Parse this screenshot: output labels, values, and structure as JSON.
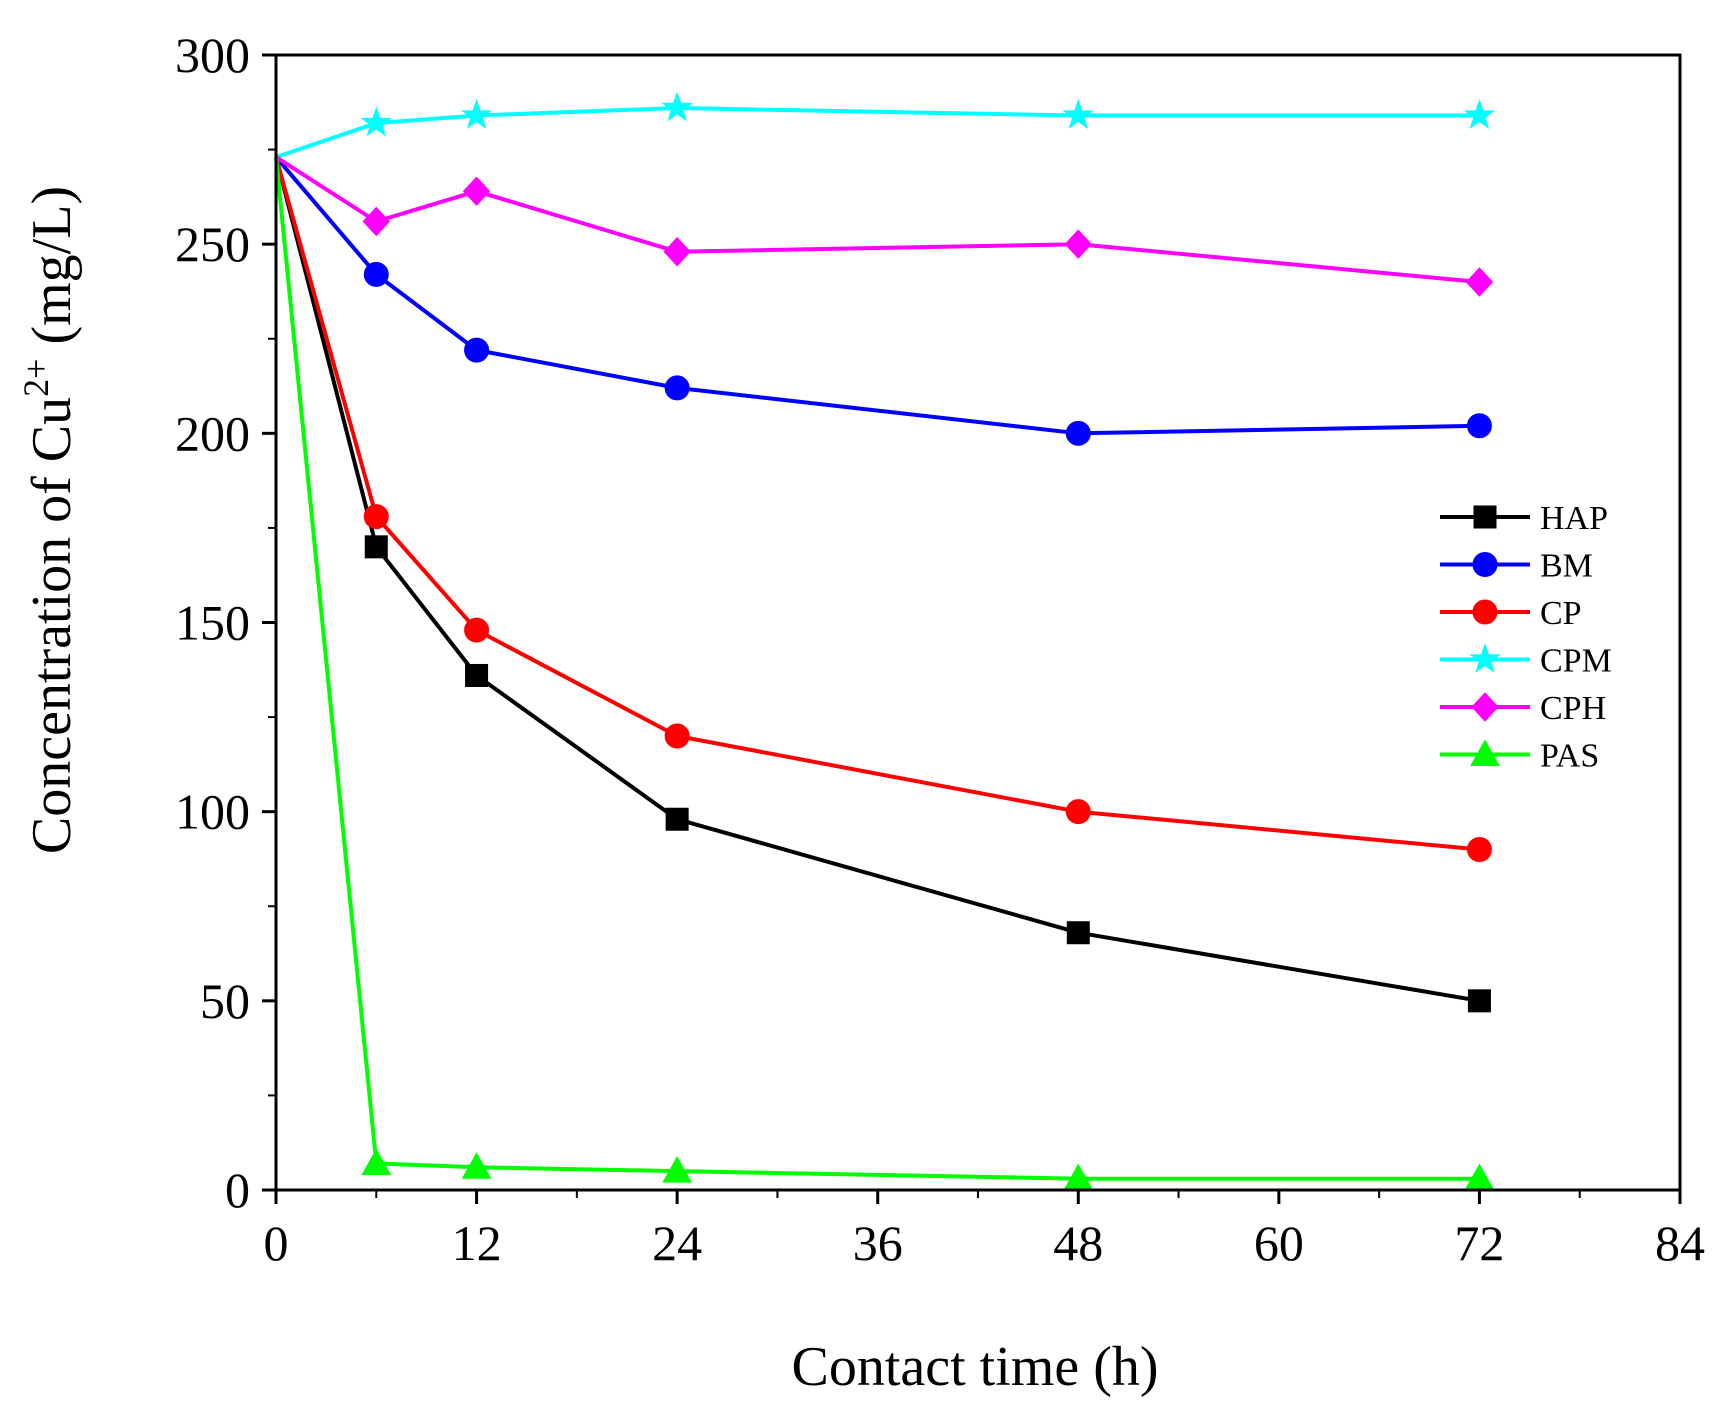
{
  "chart_data": {
    "type": "line",
    "title": "",
    "xlabel": "Contact time (h)",
    "ylabel_main": "Concentration of Cu",
    "ylabel_sup": "2+",
    "ylabel_tail": " (mg/L)",
    "xlim": [
      0,
      84
    ],
    "ylim": [
      0,
      300
    ],
    "xticks": [
      0,
      12,
      24,
      36,
      48,
      60,
      72,
      84
    ],
    "yticks": [
      0,
      50,
      100,
      150,
      200,
      250,
      300
    ],
    "legend_position": "right-middle",
    "series": [
      {
        "name": "HAP",
        "color": "#000000",
        "marker": "square",
        "x": [
          0,
          6,
          12,
          24,
          48,
          72
        ],
        "y": [
          273,
          170,
          136,
          98,
          68,
          50
        ]
      },
      {
        "name": "BM",
        "color": "#0000ff",
        "marker": "circle",
        "x": [
          0,
          6,
          12,
          24,
          48,
          72
        ],
        "y": [
          273,
          242,
          222,
          212,
          200,
          202
        ]
      },
      {
        "name": "CP",
        "color": "#ff0000",
        "marker": "circle",
        "x": [
          0,
          6,
          12,
          24,
          48,
          72
        ],
        "y": [
          273,
          178,
          148,
          120,
          100,
          90
        ]
      },
      {
        "name": "CPM",
        "color": "#00ffff",
        "marker": "star",
        "x": [
          0,
          6,
          12,
          24,
          48,
          72
        ],
        "y": [
          273,
          282,
          284,
          286,
          284,
          284
        ]
      },
      {
        "name": "CPH",
        "color": "#ff00ff",
        "marker": "diamond",
        "x": [
          0,
          6,
          12,
          24,
          48,
          72
        ],
        "y": [
          273,
          256,
          264,
          248,
          250,
          240
        ]
      },
      {
        "name": "PAS",
        "color": "#00ff00",
        "marker": "triangle",
        "x": [
          0,
          6,
          12,
          24,
          48,
          72
        ],
        "y": [
          273,
          7,
          6,
          5,
          3,
          3
        ]
      }
    ]
  }
}
